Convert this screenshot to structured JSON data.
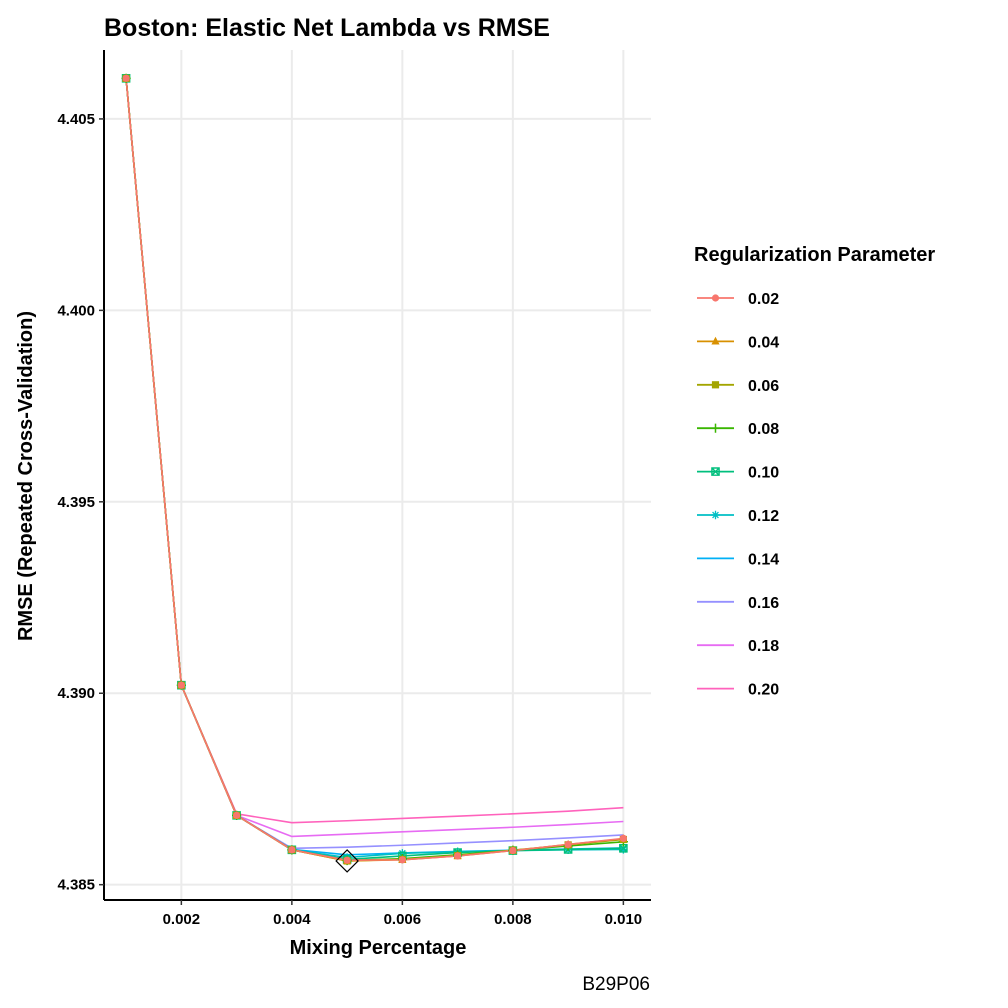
{
  "chart_data": {
    "type": "line",
    "title": "Boston: Elastic Net Lambda vs RMSE",
    "xlabel": "Mixing Percentage",
    "ylabel": "RMSE (Repeated Cross-Validation)",
    "xlim": [
      0.0006,
      0.0105
    ],
    "ylim": [
      4.3846,
      4.4068
    ],
    "xticks": [
      0.002,
      0.004,
      0.006,
      0.008,
      0.01
    ],
    "xtick_labels": [
      "0.002",
      "0.004",
      "0.006",
      "0.008",
      "0.010"
    ],
    "yticks": [
      4.385,
      4.39,
      4.395,
      4.4,
      4.405
    ],
    "ytick_labels": [
      "4.385",
      "4.390",
      "4.395",
      "4.400",
      "4.405"
    ],
    "grid": true,
    "legend_title": "Regularization Parameter",
    "legend_position": "right",
    "caption": "B29P06",
    "x": [
      0.001,
      0.002,
      0.003,
      0.004,
      0.005,
      0.006,
      0.007,
      0.008,
      0.009,
      0.01
    ],
    "best_point": {
      "x": 0.005,
      "y": 4.38562
    },
    "series": [
      {
        "name": "0.02",
        "color": "#F8766D",
        "marker": "circle",
        "values": [
          4.40606,
          4.39021,
          4.38681,
          4.38591,
          4.38564,
          4.38565,
          4.38575,
          4.38589,
          4.38605,
          4.38621
        ]
      },
      {
        "name": "0.04",
        "color": "#D89000",
        "marker": "triangle",
        "values": [
          4.40606,
          4.39021,
          4.38681,
          4.38591,
          4.38562,
          4.38565,
          4.38575,
          4.38589,
          4.38605,
          4.3862
        ]
      },
      {
        "name": "0.06",
        "color": "#A3A500",
        "marker": "square",
        "values": [
          4.40606,
          4.39021,
          4.38681,
          4.38591,
          4.38562,
          4.38566,
          4.38576,
          4.3859,
          4.38604,
          4.38618
        ]
      },
      {
        "name": "0.08",
        "color": "#39B600",
        "marker": "plus",
        "values": [
          4.40606,
          4.39021,
          4.38681,
          4.38591,
          4.38563,
          4.38568,
          4.38578,
          4.3859,
          4.38601,
          4.38612
        ]
      },
      {
        "name": "0.10",
        "color": "#00BF7D",
        "marker": "boxcross",
        "values": [
          4.40606,
          4.39021,
          4.38681,
          4.38591,
          4.38566,
          4.38575,
          4.38584,
          4.38589,
          4.38592,
          4.38595
        ]
      },
      {
        "name": "0.12",
        "color": "#00BFC4",
        "marker": "asterisk",
        "values": [
          4.40606,
          4.39021,
          4.38681,
          4.38591,
          4.38571,
          4.38582,
          4.38586,
          4.38589,
          4.38591,
          4.38592
        ]
      },
      {
        "name": "0.14",
        "color": "#00B0F6",
        "marker": "none",
        "values": [
          4.40606,
          4.39021,
          4.38681,
          4.38592,
          4.38578,
          4.38583,
          4.38587,
          4.3859,
          4.38593,
          4.38596
        ]
      },
      {
        "name": "0.16",
        "color": "#9590FF",
        "marker": "none",
        "values": [
          4.40606,
          4.39021,
          4.38681,
          4.38595,
          4.38598,
          4.38603,
          4.38609,
          4.38615,
          4.38622,
          4.3863
        ]
      },
      {
        "name": "0.18",
        "color": "#E76BF3",
        "marker": "none",
        "values": [
          4.40606,
          4.39021,
          4.38681,
          4.38626,
          4.38632,
          4.38638,
          4.38644,
          4.3865,
          4.38657,
          4.38665
        ]
      },
      {
        "name": "0.20",
        "color": "#FF62BC",
        "marker": "none",
        "values": [
          4.40606,
          4.39021,
          4.38685,
          4.38662,
          4.38667,
          4.38673,
          4.38679,
          4.38685,
          4.38692,
          4.38701
        ]
      }
    ]
  }
}
